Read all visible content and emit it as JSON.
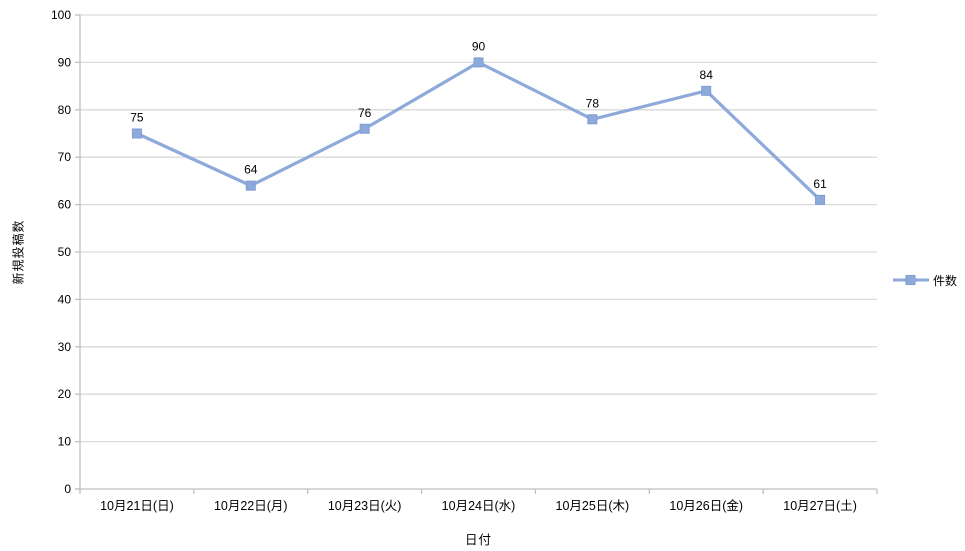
{
  "chart_data": {
    "type": "line",
    "categories": [
      "10月21日(日)",
      "10月22日(月)",
      "10月23日(火)",
      "10月24日(水)",
      "10月25日(木)",
      "10月26日(金)",
      "10月27日(土)"
    ],
    "series": [
      {
        "name": "件数",
        "values": [
          75,
          64,
          76,
          90,
          78,
          84,
          61
        ]
      }
    ],
    "xlabel": "日付",
    "ylabel": "新規投稿数",
    "ylim": [
      0,
      100
    ],
    "ytick_step": 10,
    "grid": "horizontal",
    "legend_position": "right",
    "marker": "square",
    "data_labels": true,
    "colors": {
      "series": "#8EAADB",
      "marker_border": "#7E9CD6",
      "gridline": "#D9D9D9",
      "axis": "#BFBFBF",
      "text": "#000000"
    }
  }
}
